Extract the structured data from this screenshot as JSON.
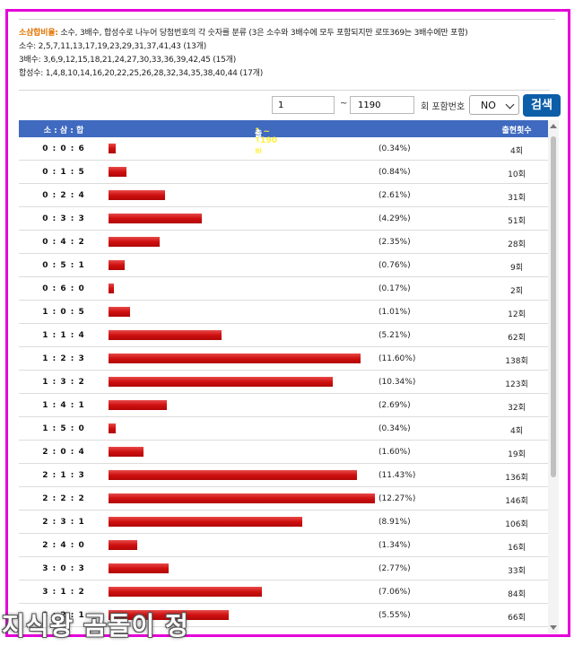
{
  "info": {
    "lead_label": "소삼합비율:",
    "lead_text": " 소수, 3배수, 합성수로 나누어 당첨번호의 각 숫자를 분류 (3은 소수와 3배수에 모두 포함되지만 로또369는 3배수에만 포함)",
    "prime": "소수: 2,5,7,11,13,17,19,23,29,31,37,41,43 (13개)",
    "multiple3": "3배수: 3,6,9,12,15,18,21,24,27,30,33,36,39,42,45 (15개)",
    "composite": "합성수: 1,4,8,10,14,16,20,22,25,26,28,32,34,35,38,40,44 (17개)"
  },
  "search": {
    "from_value": "1",
    "tilde": "~",
    "to_value": "1190",
    "include_label": "회 포함번호",
    "include_select": "NO",
    "search_button": "검색"
  },
  "table": {
    "col_combo": "소 : 삼 : 합",
    "col_range": "1 ~ 1190 회",
    "col_prob": " 출현확률",
    "col_count": "출현횟수",
    "rows": [
      {
        "combo": "0 : 0 : 6",
        "pct_value": 0.34,
        "pct": "(0.34%)",
        "count": "4회"
      },
      {
        "combo": "0 : 1 : 5",
        "pct_value": 0.84,
        "pct": "(0.84%)",
        "count": "10회"
      },
      {
        "combo": "0 : 2 : 4",
        "pct_value": 2.61,
        "pct": "(2.61%)",
        "count": "31회"
      },
      {
        "combo": "0 : 3 : 3",
        "pct_value": 4.29,
        "pct": "(4.29%)",
        "count": "51회"
      },
      {
        "combo": "0 : 4 : 2",
        "pct_value": 2.35,
        "pct": "(2.35%)",
        "count": "28회"
      },
      {
        "combo": "0 : 5 : 1",
        "pct_value": 0.76,
        "pct": "(0.76%)",
        "count": "9회"
      },
      {
        "combo": "0 : 6 : 0",
        "pct_value": 0.17,
        "pct": "(0.17%)",
        "count": "2회"
      },
      {
        "combo": "1 : 0 : 5",
        "pct_value": 1.01,
        "pct": "(1.01%)",
        "count": "12회"
      },
      {
        "combo": "1 : 1 : 4",
        "pct_value": 5.21,
        "pct": "(5.21%)",
        "count": "62회"
      },
      {
        "combo": "1 : 2 : 3",
        "pct_value": 11.6,
        "pct": "(11.60%)",
        "count": "138회"
      },
      {
        "combo": "1 : 3 : 2",
        "pct_value": 10.34,
        "pct": "(10.34%)",
        "count": "123회"
      },
      {
        "combo": "1 : 4 : 1",
        "pct_value": 2.69,
        "pct": "(2.69%)",
        "count": "32회"
      },
      {
        "combo": "1 : 5 : 0",
        "pct_value": 0.34,
        "pct": "(0.34%)",
        "count": "4회"
      },
      {
        "combo": "2 : 0 : 4",
        "pct_value": 1.6,
        "pct": "(1.60%)",
        "count": "19회"
      },
      {
        "combo": "2 : 1 : 3",
        "pct_value": 11.43,
        "pct": "(11.43%)",
        "count": "136회"
      },
      {
        "combo": "2 : 2 : 2",
        "pct_value": 12.27,
        "pct": "(12.27%)",
        "count": "146회"
      },
      {
        "combo": "2 : 3 : 1",
        "pct_value": 8.91,
        "pct": "(8.91%)",
        "count": "106회"
      },
      {
        "combo": "2 : 4 : 0",
        "pct_value": 1.34,
        "pct": "(1.34%)",
        "count": "16회"
      },
      {
        "combo": "3 : 0 : 3",
        "pct_value": 2.77,
        "pct": "(2.77%)",
        "count": "33회"
      },
      {
        "combo": "3 : 1 : 2",
        "pct_value": 7.06,
        "pct": "(7.06%)",
        "count": "84회"
      },
      {
        "combo": "3 : 2 : 1",
        "pct_value": 5.55,
        "pct": "(5.55%)",
        "count": "66회"
      }
    ]
  },
  "watermark": "지식왕 곰돌이 정",
  "colors": {
    "frame": "#e600d8",
    "header_bg": "#3f6ac0",
    "bar": "#cf1010",
    "button": "#0d5ea9",
    "highlight": "#e07400"
  }
}
